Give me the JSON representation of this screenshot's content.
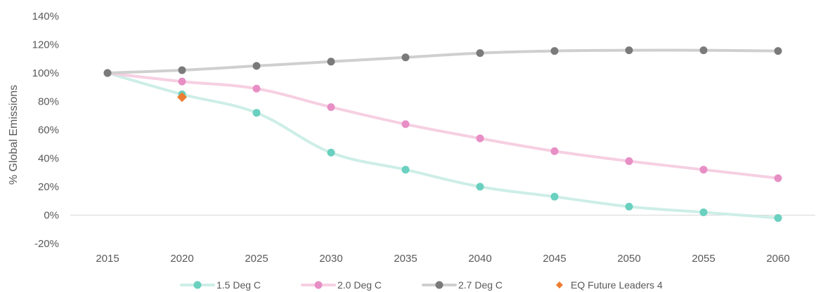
{
  "chart_data": {
    "type": "line",
    "title": "",
    "xlabel": "",
    "ylabel": "% Global Emissions",
    "categories": [
      "2015",
      "2020",
      "2025",
      "2030",
      "2035",
      "2040",
      "2045",
      "2050",
      "2055",
      "2060"
    ],
    "yticks": [
      "-20%",
      "0%",
      "20%",
      "40%",
      "60%",
      "80%",
      "100%",
      "120%",
      "140%"
    ],
    "ylim": [
      -20,
      140
    ],
    "grid": false,
    "legend_position": "bottom",
    "series": [
      {
        "name": "1.5 Deg C",
        "line_color": "#cdeee7",
        "marker_color": "#6ad0bf",
        "values": [
          100,
          85,
          72,
          44,
          32,
          20,
          13,
          6,
          2,
          -2
        ]
      },
      {
        "name": "2.0 Deg C",
        "line_color": "#f6cfe2",
        "marker_color": "#e78fc5",
        "values": [
          100,
          94,
          89,
          76,
          64,
          54,
          45,
          38,
          32,
          26
        ]
      },
      {
        "name": "2.7 Deg C",
        "line_color": "#cfcfcf",
        "marker_color": "#7a7a7a",
        "values": [
          100,
          102,
          105,
          108,
          111,
          114,
          115.5,
          116,
          116,
          115.5
        ]
      }
    ],
    "points": [
      {
        "name": "EQ Future Leaders 4",
        "color": "#ed7d31",
        "marker": "diamond",
        "x": "2020",
        "y": 83
      }
    ]
  }
}
